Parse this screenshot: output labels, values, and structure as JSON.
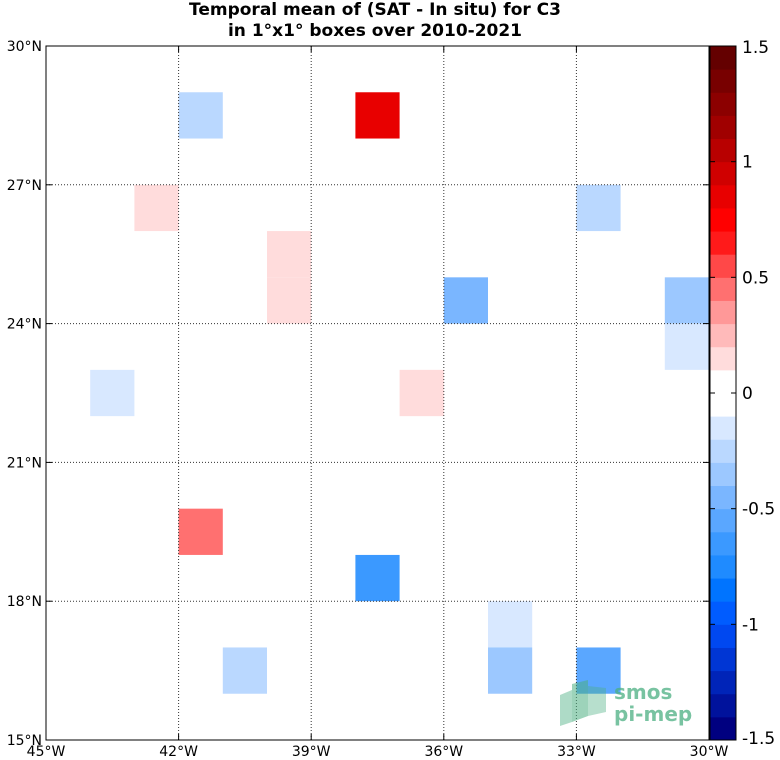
{
  "chart_data": {
    "type": "heatmap",
    "title": "Temporal mean of (SAT - In situ) for C3",
    "subtitle": "in 1°x1° boxes over 2010-2021",
    "xlim": [
      -45,
      -30
    ],
    "ylim": [
      15,
      30
    ],
    "x_ticks": [
      -45,
      -42,
      -39,
      -36,
      -33,
      -30
    ],
    "x_tick_labels": [
      "45°W",
      "42°W",
      "39°W",
      "36°W",
      "33°W",
      "30°W"
    ],
    "y_ticks": [
      15,
      18,
      21,
      24,
      27,
      30
    ],
    "y_tick_labels": [
      "15°N",
      "18°N",
      "21°N",
      "24°N",
      "27°N",
      "30°N"
    ],
    "grid": true,
    "colorbar": {
      "min": -1.5,
      "max": 1.5,
      "step": 0.1,
      "ticks": [
        1.5,
        1,
        0.5,
        0,
        -0.5,
        -1,
        -1.5
      ],
      "tick_labels": [
        "1.5",
        "1",
        "0.5",
        "0",
        "-0.5",
        "-1",
        "-1.5"
      ],
      "colors_bottom_to_top": [
        "#000080",
        "#00129c",
        "#0024b8",
        "#0036d4",
        "#0048f0",
        "#005cff",
        "#0074ff",
        "#1f8bff",
        "#3b99ff",
        "#5aa7ff",
        "#7ab6ff",
        "#9cc8ff",
        "#bad8ff",
        "#d8e8ff",
        "#ffffff",
        "#ffffff",
        "#ffdcdc",
        "#ffbaba",
        "#ff9898",
        "#ff7070",
        "#ff4848",
        "#ff1a1a",
        "#ff0000",
        "#e80000",
        "#d00000",
        "#b80000",
        "#a00000",
        "#8c0000",
        "#780000",
        "#640000"
      ]
    },
    "cells": [
      {
        "lon": -42,
        "lat": 28,
        "value": -0.3
      },
      {
        "lon": -38,
        "lat": 28,
        "value": 0.8
      },
      {
        "lon": -43,
        "lat": 26,
        "value": 0.15
      },
      {
        "lon": -33,
        "lat": 26,
        "value": -0.3
      },
      {
        "lon": -40,
        "lat": 25,
        "value": 0.1
      },
      {
        "lon": -40,
        "lat": 24,
        "value": 0.1
      },
      {
        "lon": -36,
        "lat": 24,
        "value": -0.45
      },
      {
        "lon": -31,
        "lat": 24,
        "value": -0.35
      },
      {
        "lon": -31,
        "lat": 23,
        "value": -0.15
      },
      {
        "lon": -44,
        "lat": 22,
        "value": -0.15
      },
      {
        "lon": -37,
        "lat": 22,
        "value": 0.15
      },
      {
        "lon": -42,
        "lat": 19,
        "value": 0.45
      },
      {
        "lon": -38,
        "lat": 18,
        "value": -0.7
      },
      {
        "lon": -35,
        "lat": 17,
        "value": -0.15
      },
      {
        "lon": -41,
        "lat": 16,
        "value": -0.3
      },
      {
        "lon": -35,
        "lat": 16,
        "value": -0.35
      },
      {
        "lon": -33,
        "lat": 16,
        "value": -0.6
      }
    ]
  },
  "logo": {
    "line1": "smos",
    "line2": "pi-mep"
  }
}
